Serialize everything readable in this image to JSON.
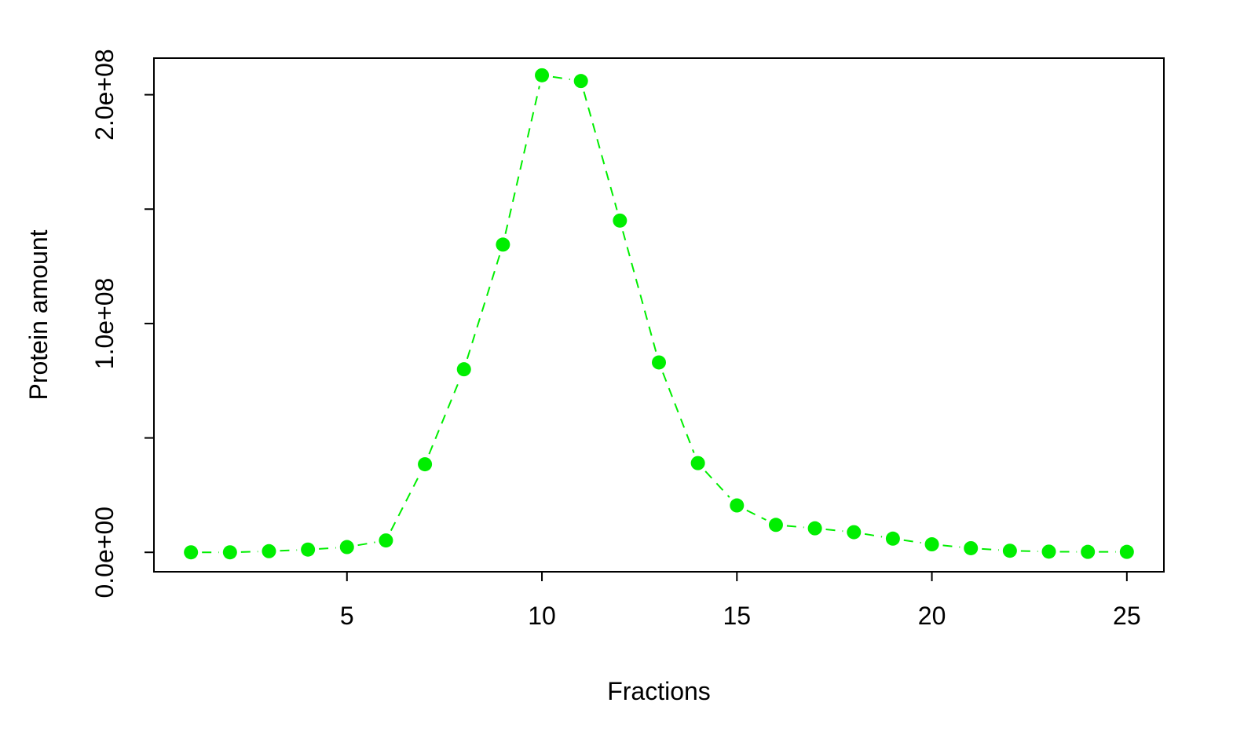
{
  "chart_data": {
    "type": "line",
    "xlabel": "Fractions",
    "ylabel": "Protein amount",
    "x": [
      1,
      2,
      3,
      4,
      5,
      6,
      7,
      8,
      9,
      10,
      11,
      12,
      13,
      14,
      15,
      16,
      17,
      18,
      19,
      20,
      21,
      22,
      23,
      24,
      25
    ],
    "series": [
      {
        "values": [
          0,
          0,
          500000,
          1200000,
          2300000,
          5200000,
          38500000,
          80000000,
          134500000,
          208500000,
          206000000,
          145000000,
          83000000,
          39000000,
          20500000,
          12000000,
          10500000,
          8800000,
          6000000,
          3500000,
          1800000,
          700000,
          300000,
          200000,
          200000
        ],
        "color": "#00ee00",
        "marker": "filled-circle",
        "line_style": "dashed"
      }
    ],
    "xlim": [
      0.05,
      25.95
    ],
    "ylim": [
      -8500000,
      216000000
    ],
    "xticks": [
      5,
      10,
      15,
      20,
      25
    ],
    "xtick_labels": [
      "5",
      "10",
      "15",
      "20",
      "25"
    ],
    "yticks": [
      0,
      50000000,
      100000000,
      150000000,
      200000000
    ],
    "ytick_labels": [
      "0.0e+00",
      "",
      "1.0e+08",
      "",
      "2.0e+08"
    ],
    "grid": false,
    "legend": "none"
  }
}
